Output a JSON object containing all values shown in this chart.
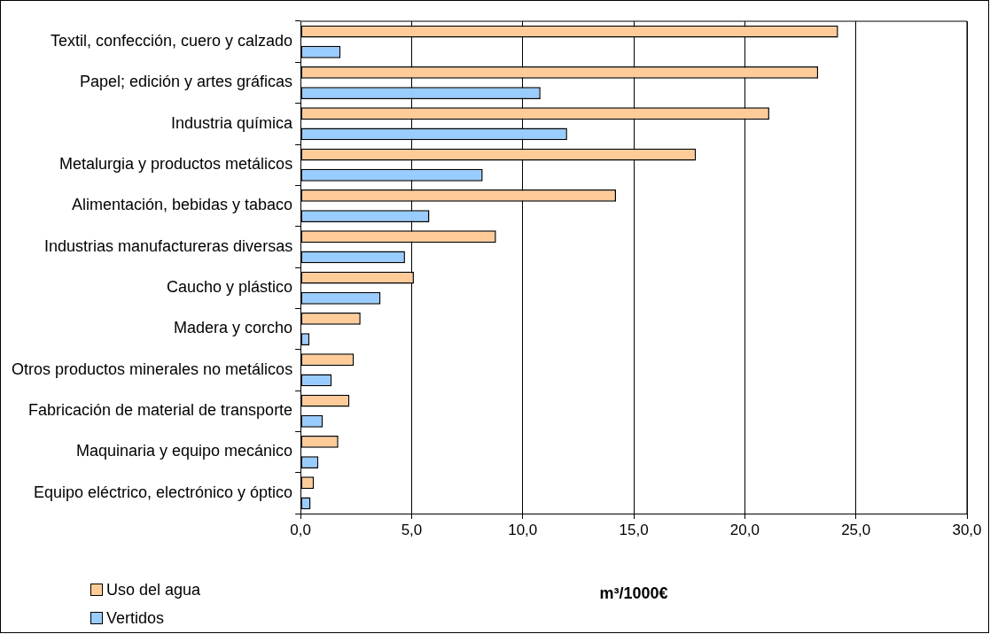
{
  "chart_data": {
    "type": "bar",
    "orientation": "horizontal",
    "xlabel": "m³/1000€",
    "categories": [
      "Textil, confección, cuero y calzado",
      "Papel; edición y artes gráficas",
      "Industria química",
      "Metalurgia y productos metálicos",
      "Alimentación, bebidas y tabaco",
      "Industrias manufactureras diversas",
      "Caucho y plástico",
      "Madera y corcho",
      "Otros productos minerales no metálicos",
      "Fabricación de material de transporte",
      "Maquinaria y equipo mecánico",
      "Equipo eléctrico, electrónico y óptico"
    ],
    "series": [
      {
        "name": "Uso del agua",
        "color": "#ffcc99",
        "values": [
          24.2,
          23.3,
          21.1,
          17.8,
          14.2,
          8.8,
          5.1,
          2.7,
          2.4,
          2.2,
          1.7,
          0.6
        ]
      },
      {
        "name": "Vertidos",
        "color": "#99ccff",
        "values": [
          1.8,
          10.8,
          12.0,
          8.2,
          5.8,
          4.7,
          3.6,
          0.4,
          1.4,
          1.0,
          0.8,
          0.45
        ]
      }
    ],
    "xlim": [
      0,
      30
    ],
    "xticks": [
      {
        "value": 0,
        "label": "0,0"
      },
      {
        "value": 5,
        "label": "5,0"
      },
      {
        "value": 10,
        "label": "10,0"
      },
      {
        "value": 15,
        "label": "15,0"
      },
      {
        "value": 20,
        "label": "20,0"
      },
      {
        "value": 25,
        "label": "25,0"
      },
      {
        "value": 30,
        "label": "30,0"
      }
    ],
    "grid": "x",
    "legend": "bottom left"
  }
}
